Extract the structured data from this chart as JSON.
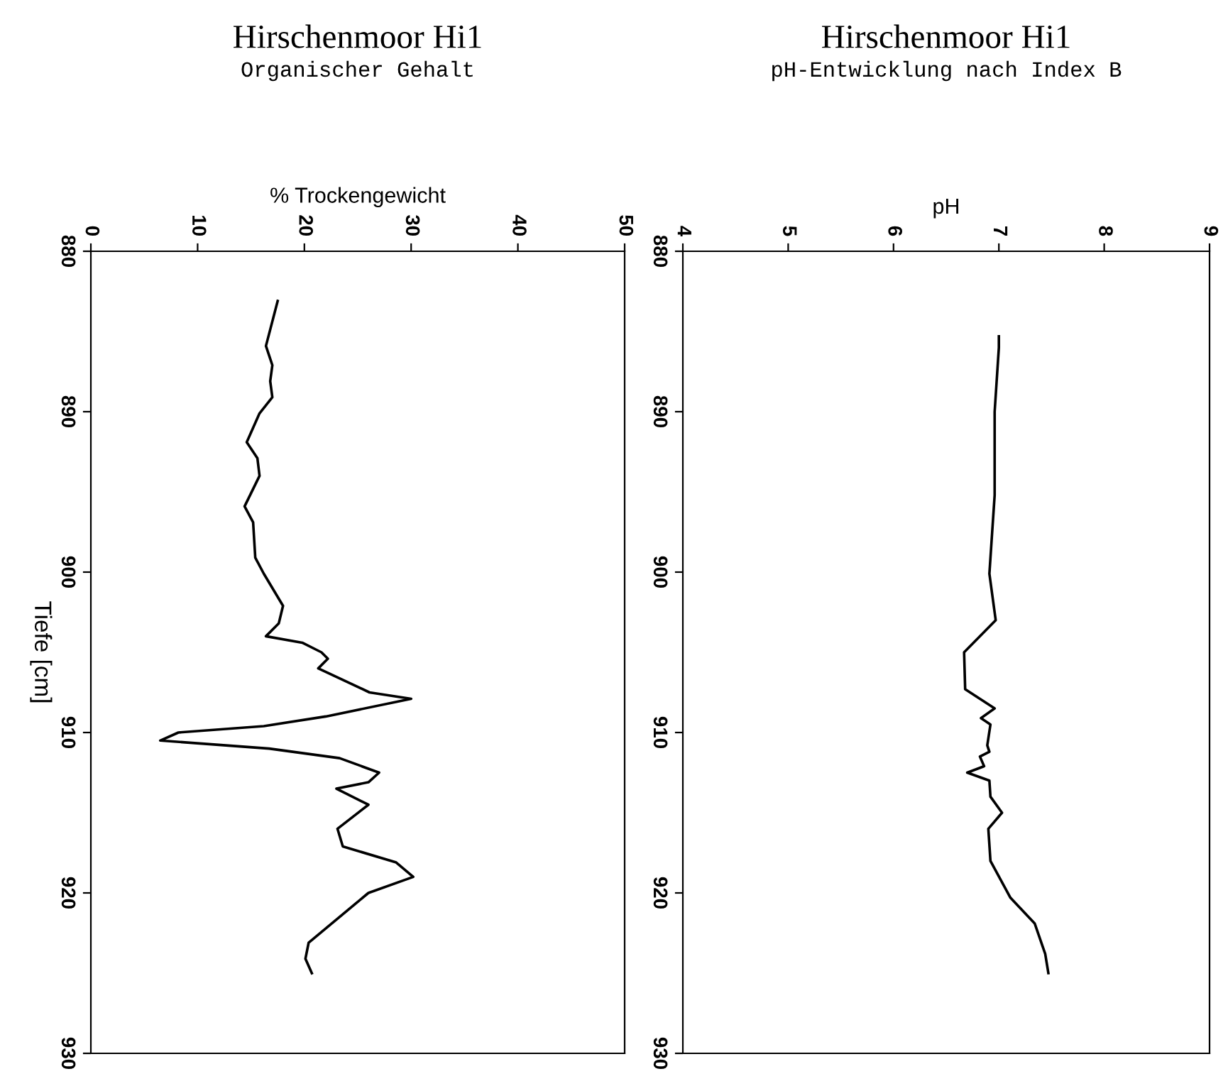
{
  "chart_data": [
    {
      "type": "line",
      "orientation": "horizontal",
      "title": "Hirschenmoor Hi1",
      "subtitle": "Organischer Gehalt",
      "xlabel": "% Trockengewicht",
      "ylabel": "Tiefe [cm]",
      "color": "#000000",
      "x": [
        883.1,
        885.9,
        887.1,
        888.1,
        889.1,
        890.1,
        891.9,
        892.9,
        894.0,
        895.9,
        896.9,
        899.1,
        900.1,
        902.1,
        903.2,
        904.0,
        904.4,
        905.0,
        905.4,
        906.0,
        907.5,
        907.9,
        909.0,
        909.6,
        910.0,
        910.5,
        911.0,
        911.6,
        912.5,
        913.1,
        913.5,
        914.5,
        916.0,
        917.1,
        918.1,
        919.0,
        920.0,
        923.1,
        924.1,
        925.0
      ],
      "values": [
        17.5,
        16.4,
        17.0,
        16.8,
        17.0,
        15.8,
        14.6,
        15.6,
        15.8,
        14.4,
        15.2,
        15.4,
        16.2,
        18.0,
        17.6,
        16.4,
        19.8,
        21.6,
        22.2,
        21.3,
        26.1,
        30.0,
        22.0,
        16.2,
        8.2,
        6.5,
        16.7,
        23.3,
        27.0,
        26.0,
        23.0,
        26.0,
        23.1,
        23.6,
        28.6,
        30.2,
        26.0,
        20.4,
        20.1,
        20.7
      ],
      "xlim": [
        0,
        50
      ],
      "xticks": [
        0,
        10,
        20,
        30,
        40,
        50
      ],
      "ylim": [
        930,
        880
      ],
      "yticks": [
        880,
        890,
        900,
        910,
        920,
        930
      ],
      "grid": false,
      "legend": false
    },
    {
      "type": "line",
      "orientation": "horizontal",
      "title": "Hirschenmoor Hi1",
      "subtitle": "pH-Entwicklung nach Index B",
      "xlabel": "pH",
      "color": "#000000",
      "x": [
        885.3,
        886.0,
        890.0,
        895.2,
        900.1,
        903.0,
        905.0,
        907.3,
        908.5,
        909.1,
        909.5,
        910.8,
        911.2,
        911.5,
        912.1,
        912.5,
        913.0,
        914.0,
        915.0,
        916.0,
        918.0,
        920.3,
        921.9,
        923.8,
        925.0
      ],
      "values": [
        7.0,
        7.0,
        6.96,
        6.96,
        6.91,
        6.97,
        6.67,
        6.68,
        6.96,
        6.83,
        6.92,
        6.89,
        6.91,
        6.82,
        6.86,
        6.7,
        6.91,
        6.92,
        7.03,
        6.9,
        6.92,
        7.11,
        7.34,
        7.44,
        7.47
      ],
      "xlim": [
        4,
        9
      ],
      "xticks": [
        4,
        5,
        6,
        7,
        8,
        9
      ],
      "ylim": [
        930,
        880
      ],
      "yticks": [
        880,
        890,
        900,
        910,
        920,
        930
      ],
      "grid": false,
      "legend": false
    }
  ]
}
